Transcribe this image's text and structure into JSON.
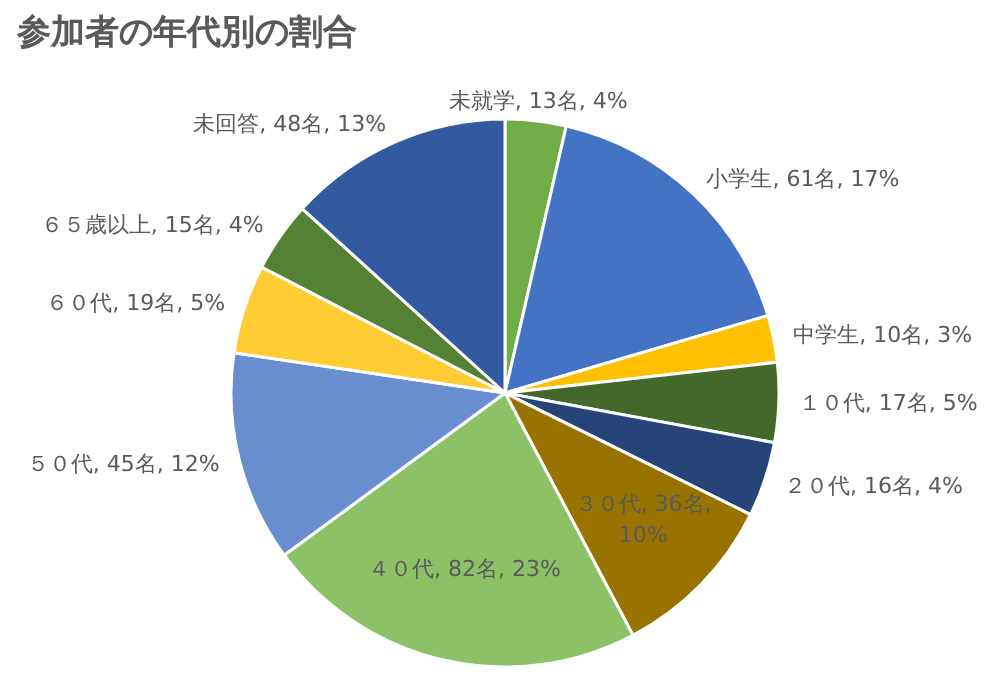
{
  "chart_data": {
    "type": "pie",
    "title": "参加者の年代別の割合",
    "categories": [
      "未就学",
      "小学生",
      "中学生",
      "１０代",
      "２０代",
      "３０代",
      "４０代",
      "５０代",
      "６０代",
      "６５歳以上",
      "未回答"
    ],
    "values": [
      13,
      61,
      10,
      17,
      16,
      36,
      82,
      45,
      19,
      15,
      48
    ],
    "colors": [
      "#70ad47",
      "#4472c4",
      "#ffc000",
      "#43682b",
      "#264478",
      "#997300",
      "#8cc168",
      "#698ed0",
      "#ffcd33",
      "#548235",
      "#335aa1"
    ],
    "value_labels": [
      "13名, 4%",
      "61名, 17%",
      "10名, 3%",
      "17名, 5%",
      "16名, 4%",
      "36名, 10%",
      "82名, 23%",
      "45名, 12%",
      "19名, 5%",
      "15名, 4%",
      "48名, 13%"
    ]
  }
}
